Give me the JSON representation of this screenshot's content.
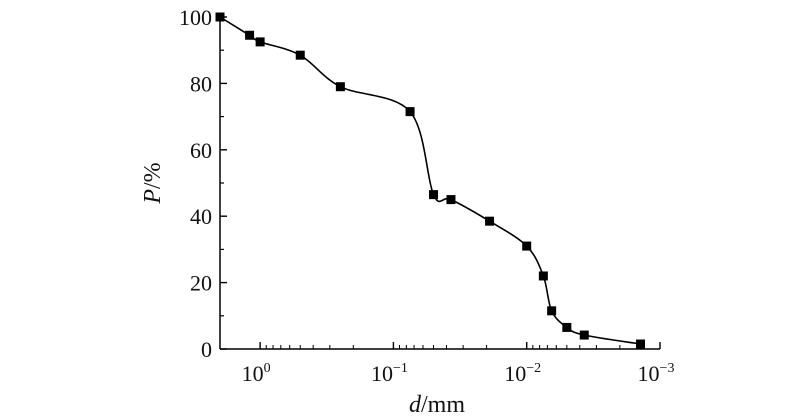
{
  "chart_data": {
    "type": "line",
    "xlabel": {
      "var": "d",
      "unit": "/mm"
    },
    "ylabel": {
      "var": "P",
      "unit": "/%"
    },
    "x_scale": "log",
    "x_reversed": true,
    "xlim": [
      2.0,
      0.001
    ],
    "ylim": [
      0,
      100
    ],
    "x_ticks": [
      {
        "value": 1,
        "base": "10",
        "exp": "0"
      },
      {
        "value": 0.1,
        "base": "10",
        "exp": "−1"
      },
      {
        "value": 0.01,
        "base": "10",
        "exp": "−2"
      },
      {
        "value": 0.001,
        "base": "10",
        "exp": "−3"
      }
    ],
    "y_ticks": [
      "0",
      "20",
      "40",
      "60",
      "80",
      "100"
    ],
    "grid": false,
    "marker": "square",
    "color": "#000000",
    "series": [
      {
        "x": [
          2.0,
          1.2,
          1.0,
          0.5,
          0.25,
          0.075,
          0.05,
          0.037,
          0.019,
          0.01,
          0.0075,
          0.0065,
          0.005,
          0.0037,
          0.0014
        ],
        "y": [
          100,
          94.5,
          92.5,
          88.5,
          79,
          71.5,
          46.5,
          45,
          38.5,
          31,
          22,
          11.5,
          6.5,
          4.2,
          1.5
        ]
      }
    ]
  }
}
